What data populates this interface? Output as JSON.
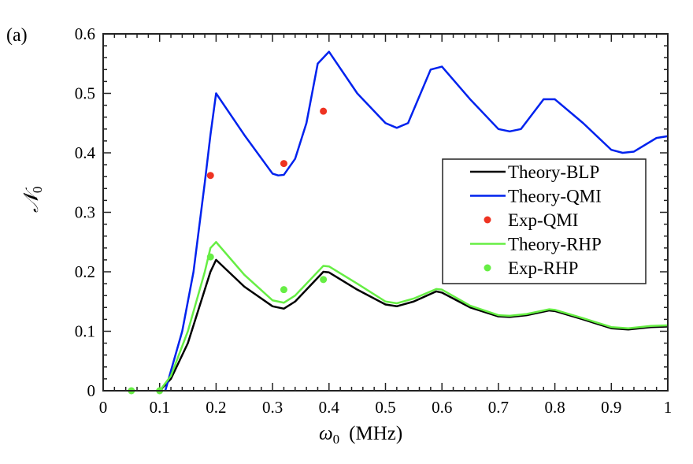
{
  "panel_label": "(a)",
  "chart_data": {
    "type": "line",
    "xlabel": "ω",
    "xlabel_sub": "0",
    "xlabel_unit": "(MHz)",
    "ylabel": "𝒩",
    "ylabel_sub": "0",
    "xlim": [
      0,
      1
    ],
    "ylim": [
      0,
      0.6
    ],
    "xticks": [
      "0",
      "0.1",
      "0.2",
      "0.3",
      "0.4",
      "0.5",
      "0.6",
      "0.7",
      "0.8",
      "0.9",
      "1"
    ],
    "yticks": [
      "0",
      "0.1",
      "0.2",
      "0.3",
      "0.4",
      "0.5",
      "0.6"
    ],
    "grid": false,
    "legend_placement": "center-right",
    "series": [
      {
        "name": "Theory-BLP",
        "kind": "line",
        "color": "#000000",
        "x": [
          0.1,
          0.12,
          0.15,
          0.18,
          0.19,
          0.2,
          0.25,
          0.3,
          0.32,
          0.34,
          0.37,
          0.39,
          0.4,
          0.45,
          0.5,
          0.52,
          0.55,
          0.59,
          0.6,
          0.65,
          0.7,
          0.72,
          0.75,
          0.79,
          0.8,
          0.85,
          0.9,
          0.93,
          0.97,
          1.0
        ],
        "y": [
          0,
          0.02,
          0.08,
          0.17,
          0.2,
          0.22,
          0.175,
          0.142,
          0.138,
          0.15,
          0.18,
          0.2,
          0.199,
          0.17,
          0.145,
          0.142,
          0.15,
          0.167,
          0.165,
          0.14,
          0.125,
          0.124,
          0.127,
          0.135,
          0.134,
          0.12,
          0.105,
          0.103,
          0.107,
          0.108
        ]
      },
      {
        "name": "Theory-QMI",
        "kind": "line",
        "color": "#0022ee",
        "x": [
          0.11,
          0.14,
          0.16,
          0.18,
          0.19,
          0.2,
          0.25,
          0.3,
          0.31,
          0.32,
          0.34,
          0.36,
          0.38,
          0.4,
          0.45,
          0.5,
          0.52,
          0.54,
          0.58,
          0.6,
          0.65,
          0.7,
          0.72,
          0.74,
          0.78,
          0.8,
          0.85,
          0.9,
          0.92,
          0.94,
          0.98,
          1.0
        ],
        "y": [
          0,
          0.1,
          0.2,
          0.35,
          0.43,
          0.5,
          0.43,
          0.365,
          0.362,
          0.363,
          0.39,
          0.45,
          0.55,
          0.57,
          0.5,
          0.45,
          0.442,
          0.45,
          0.54,
          0.545,
          0.49,
          0.44,
          0.436,
          0.44,
          0.49,
          0.49,
          0.45,
          0.405,
          0.4,
          0.402,
          0.425,
          0.428
        ]
      },
      {
        "name": "Exp-QMI",
        "kind": "scatter",
        "color": "#ee3322",
        "x": [
          0.19,
          0.32,
          0.39
        ],
        "y": [
          0.362,
          0.382,
          0.47
        ]
      },
      {
        "name": "Theory-RHP",
        "kind": "line",
        "color": "#66ee44",
        "x": [
          0.1,
          0.12,
          0.15,
          0.18,
          0.19,
          0.2,
          0.25,
          0.3,
          0.32,
          0.34,
          0.37,
          0.39,
          0.4,
          0.45,
          0.5,
          0.52,
          0.55,
          0.59,
          0.6,
          0.65,
          0.7,
          0.72,
          0.75,
          0.79,
          0.8,
          0.85,
          0.9,
          0.93,
          0.97,
          1.0
        ],
        "y": [
          0,
          0.025,
          0.1,
          0.2,
          0.24,
          0.25,
          0.195,
          0.152,
          0.148,
          0.16,
          0.19,
          0.21,
          0.209,
          0.18,
          0.15,
          0.147,
          0.155,
          0.171,
          0.17,
          0.143,
          0.127,
          0.126,
          0.129,
          0.137,
          0.136,
          0.122,
          0.107,
          0.105,
          0.109,
          0.11
        ]
      },
      {
        "name": "Exp-RHP",
        "kind": "scatter",
        "color": "#66ee44",
        "x": [
          0.05,
          0.1,
          0.19,
          0.32,
          0.39
        ],
        "y": [
          0,
          0,
          0.225,
          0.17,
          0.187
        ]
      }
    ]
  }
}
